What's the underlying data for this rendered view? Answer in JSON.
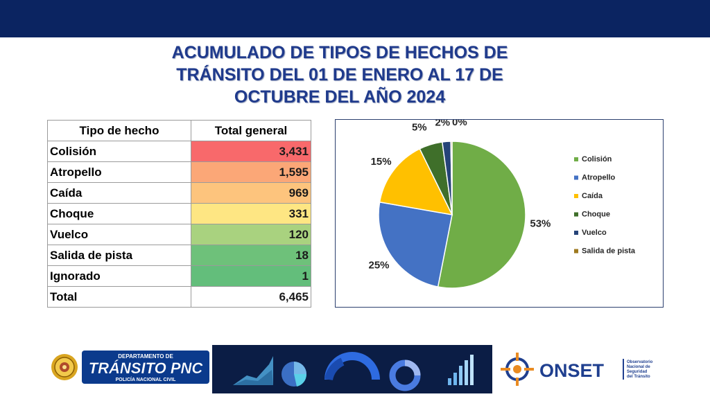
{
  "title_lines": [
    "ACUMULADO DE TIPOS DE HECHOS DE",
    "TRÁNSITO DEL 01 DE ENERO AL 17 DE",
    "OCTUBRE DEL AÑO 2024"
  ],
  "table": {
    "headers": [
      "Tipo de hecho",
      "Total general"
    ],
    "rows": [
      {
        "label": "Colisión",
        "value": "3,431",
        "color": "#f8696b"
      },
      {
        "label": "Atropello",
        "value": "1,595",
        "color": "#fba777"
      },
      {
        "label": "Caída",
        "value": "969",
        "color": "#fdc47d"
      },
      {
        "label": "Choque",
        "value": "331",
        "color": "#fee683"
      },
      {
        "label": "Vuelco",
        "value": "120",
        "color": "#a9d27f"
      },
      {
        "label": "Salida de pista",
        "value": "18",
        "color": "#6ec17a"
      },
      {
        "label": "Ignorado",
        "value": "1",
        "color": "#63be7b"
      },
      {
        "label": "Total",
        "value": "6,465",
        "color": "#ffffff"
      }
    ]
  },
  "chart_data": {
    "type": "pie",
    "title": "",
    "legend_position": "right",
    "categories": [
      "Colisión",
      "Atropello",
      "Caída",
      "Choque",
      "Vuelco",
      "Salida de pista"
    ],
    "values": [
      3431,
      1595,
      969,
      331,
      120,
      18
    ],
    "data_labels": [
      "53%",
      "25%",
      "15%",
      "5%",
      "2%",
      "0%"
    ],
    "colors": [
      "#70ad47",
      "#4472c4",
      "#ffc000",
      "#3f6f2a",
      "#264478",
      "#9e7a1f"
    ]
  },
  "footer": {
    "left_logo": {
      "line1": "DEPARTAMENTO DE",
      "line2": "TRÁNSITO PNC",
      "line3": "POLICÍA NACIONAL CIVIL"
    },
    "right_logo": {
      "name": "ONSET",
      "sub": [
        "Observatorio",
        "Nacional de",
        "Seguridad",
        "del Tránsito"
      ]
    }
  }
}
